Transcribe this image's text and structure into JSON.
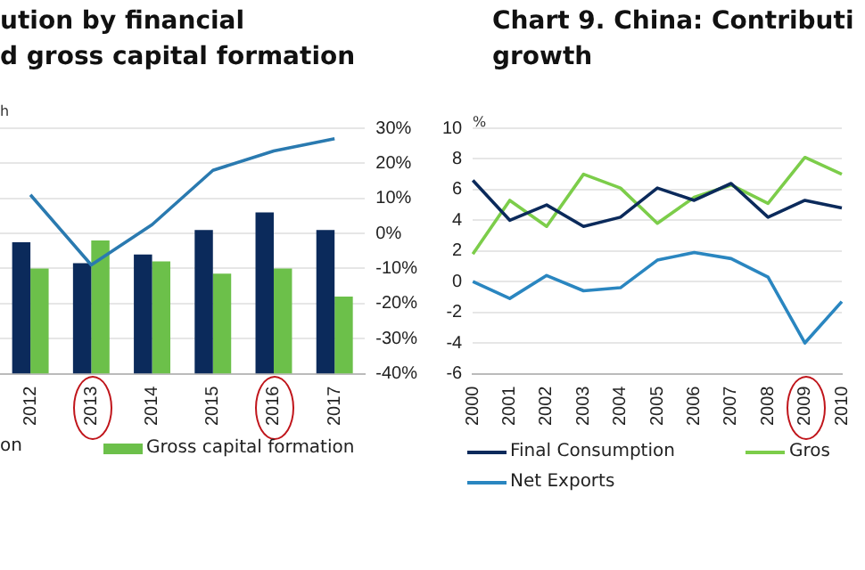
{
  "chart_data": [
    {
      "type": "bar",
      "title": "ution by financial\nd gross capital formation",
      "ylabel": "h",
      "categories": [
        "2012",
        "2013",
        "2014",
        "2015",
        "2016",
        "2017"
      ],
      "series": [
        {
          "type": "bar",
          "color": "#0b2a5b",
          "values": [
            37.5,
            31.5,
            34,
            41,
            46,
            41
          ],
          "base": [
            -40,
            -40,
            -40,
            -40,
            -40,
            -40
          ]
        },
        {
          "type": "bar",
          "name": "Gross capital formation",
          "color": "#6cc04a",
          "values": [
            30,
            38,
            32,
            28.5,
            30,
            22
          ],
          "base": [
            -40,
            -40,
            -40,
            -40,
            -40,
            -40
          ]
        },
        {
          "type": "line",
          "color": "#2a7ab0",
          "values": [
            11,
            -9,
            2.5,
            18,
            23.5,
            27
          ]
        }
      ],
      "ylim": [
        -40,
        30
      ],
      "yticks": [
        {
          "value": -40,
          "label": "-40%"
        },
        {
          "value": -30,
          "label": "-30%"
        },
        {
          "value": -20,
          "label": "-20%"
        },
        {
          "value": -10,
          "label": "-10%"
        },
        {
          "value": 0,
          "label": "0%"
        },
        {
          "value": 10,
          "label": "10%"
        },
        {
          "value": 20,
          "label": "20%"
        },
        {
          "value": 30,
          "label": "30%"
        }
      ],
      "grid": "y",
      "legend": "bottom",
      "annotations": [
        "on"
      ]
    },
    {
      "type": "line",
      "title": "Chart 9. China: Contributi\ngrowth",
      "ylabel": "%",
      "categories": [
        "2000",
        "2001",
        "2002",
        "2003",
        "2004",
        "2005",
        "2006",
        "2007",
        "2008",
        "2009",
        "2010"
      ],
      "series": [
        {
          "name": "Final Consumption",
          "color": "#0b2a5b",
          "values": [
            6.6,
            4.0,
            5.0,
            3.6,
            4.2,
            6.1,
            5.3,
            6.4,
            4.2,
            5.3,
            4.8
          ]
        },
        {
          "name": "Gros",
          "color": "#7ccd4a",
          "values": [
            1.8,
            5.3,
            3.6,
            7.0,
            6.1,
            3.8,
            5.5,
            6.3,
            5.1,
            8.1,
            7.0
          ]
        },
        {
          "name": "Net Exports",
          "color": "#2a86c0",
          "values": [
            0,
            -1.1,
            0.4,
            -0.6,
            -0.4,
            1.4,
            1.9,
            1.5,
            0.3,
            -4.0,
            -1.3
          ]
        }
      ],
      "ylim": [
        -6,
        10
      ],
      "yticks": [
        -6,
        -4,
        -2,
        0,
        2,
        4,
        6,
        8,
        10
      ],
      "grid": "y",
      "legend": "bottom"
    }
  ]
}
